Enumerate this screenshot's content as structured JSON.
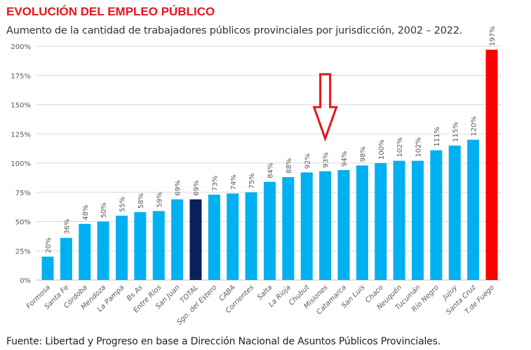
{
  "chart_data": {
    "type": "bar",
    "title": "EVOLUCIÓN DEL EMPLEO PÚBLICO",
    "subtitle": "Aumento de la cantidad de trabajadores públicos provinciales por jurisdicción, 2002 – 2022.",
    "source": "Fuente: Libertad y Progreso en base a Dirección Nacional de Asuntos Públicos Provinciales.",
    "categories": [
      "Formosa",
      "Santa Fe",
      "Córdoba",
      "Mendoza",
      "La Pampa",
      "Bs As",
      "Entre Ríos",
      "San Juan",
      "TOTAL",
      "Sgo. del Estero",
      "CABA",
      "Corrientes",
      "Salta",
      "La Rioja",
      "Chubut",
      "Misiones",
      "Catamarca",
      "San Luis",
      "Chaco",
      "Neuquén",
      "Tucumán",
      "Río Negro",
      "Jujuy",
      "Santa Cruz",
      "T.de Fuego"
    ],
    "values": [
      20,
      36,
      48,
      50,
      55,
      58,
      59,
      69,
      69,
      73,
      74,
      75,
      84,
      88,
      92,
      93,
      94,
      98,
      100,
      102,
      102,
      111,
      115,
      120,
      197
    ],
    "value_labels": [
      "20%",
      "36%",
      "48%",
      "50%",
      "55%",
      "58%",
      "59%",
      "69%",
      "69%",
      "73%",
      "74%",
      "75%",
      "84%",
      "88%",
      "92%",
      "93%",
      "94%",
      "98%",
      "100%",
      "102%",
      "102%",
      "111%",
      "115%",
      "120%",
      "197%"
    ],
    "ylim": [
      0,
      200
    ],
    "yticks": [
      "0%",
      "25%",
      "50%",
      "75%",
      "100%",
      "125%",
      "150%",
      "175%",
      "200%"
    ],
    "grid": true,
    "colors": {
      "default": "#00b0f0",
      "TOTAL": "#0a1f5c",
      "T.de Fuego": "#ff0000",
      "arrow": "#e8141b"
    },
    "annotation": {
      "type": "arrow-down",
      "target": "Misiones"
    }
  }
}
